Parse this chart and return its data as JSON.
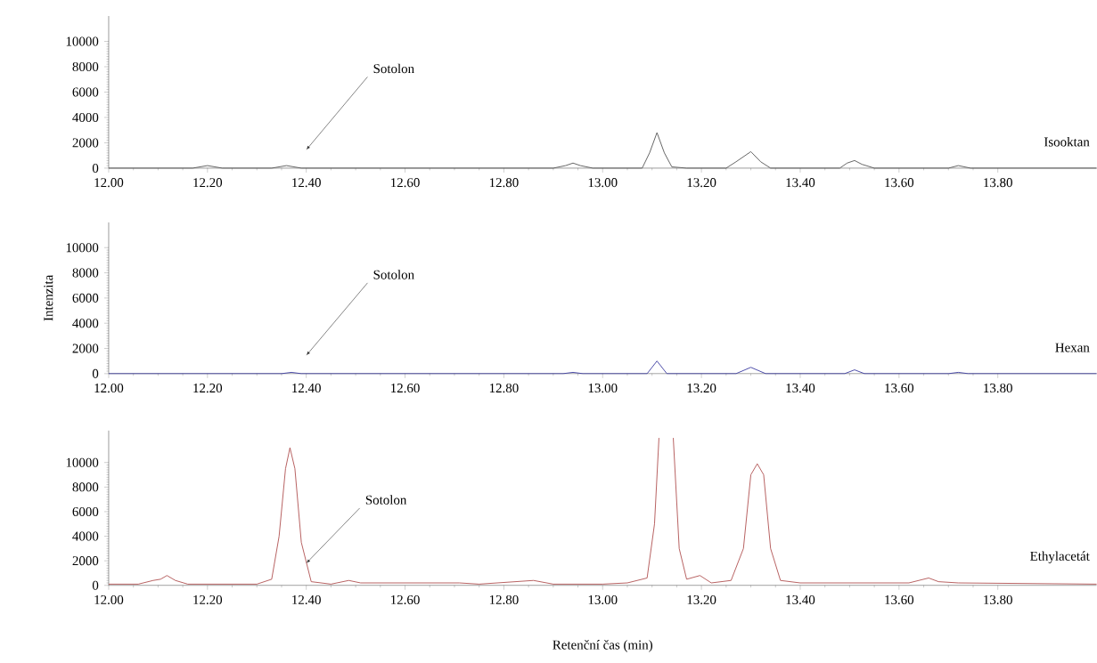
{
  "chart_data": [
    {
      "type": "line",
      "xlim": [
        12,
        14
      ],
      "ylim": [
        0,
        12000
      ],
      "xticks": [
        {
          "value": 12,
          "label": "12.00"
        },
        {
          "value": 12.2,
          "label": "12.20"
        },
        {
          "value": 12.4,
          "label": "12.40"
        },
        {
          "value": 12.6,
          "label": "12.60"
        },
        {
          "value": 12.8,
          "label": "12.80"
        },
        {
          "value": 13,
          "label": "13.00"
        },
        {
          "value": 13.2,
          "label": "13.20"
        },
        {
          "value": 13.4,
          "label": "13.40"
        },
        {
          "value": 13.6,
          "label": "13.60"
        },
        {
          "value": 13.8,
          "label": "13.80"
        }
      ],
      "yticks": [
        0,
        2000,
        4000,
        6000,
        8000,
        10000
      ],
      "annotations": [
        "Sotolon"
      ],
      "series": [
        {
          "name": "Isooktan",
          "color": "#555555",
          "x": [
            12.0,
            12.1,
            12.17,
            12.2,
            12.23,
            12.33,
            12.36,
            12.39,
            12.6,
            12.7,
            12.9,
            12.925,
            12.94,
            12.955,
            12.98,
            13.08,
            13.095,
            13.11,
            13.125,
            13.14,
            13.17,
            13.25,
            13.27,
            13.3,
            13.32,
            13.34,
            13.48,
            13.495,
            13.51,
            13.525,
            13.55,
            13.7,
            13.72,
            13.745,
            14.0
          ],
          "values": [
            0,
            0,
            0,
            200,
            0,
            0,
            200,
            0,
            0,
            0,
            0,
            200,
            400,
            200,
            0,
            0,
            1200,
            2800,
            1200,
            100,
            0,
            0,
            500,
            1300,
            500,
            0,
            0,
            400,
            600,
            300,
            0,
            0,
            200,
            0,
            0
          ]
        }
      ]
    },
    {
      "type": "line",
      "xlim": [
        12,
        14
      ],
      "ylim": [
        0,
        12000
      ],
      "ylabel": "Intenzita",
      "xticks": [
        {
          "value": 12,
          "label": "12.00"
        },
        {
          "value": 12.2,
          "label": "12.20"
        },
        {
          "value": 12.4,
          "label": "12.40"
        },
        {
          "value": 12.6,
          "label": "12.60"
        },
        {
          "value": 12.8,
          "label": "12.80"
        },
        {
          "value": 13,
          "label": "13.00"
        },
        {
          "value": 13.2,
          "label": "13.20"
        },
        {
          "value": 13.4,
          "label": "13.40"
        },
        {
          "value": 13.6,
          "label": "13.60"
        },
        {
          "value": 13.8,
          "label": "13.80"
        }
      ],
      "yticks": [
        0,
        2000,
        4000,
        6000,
        8000,
        10000
      ],
      "annotations": [
        "Sotolon"
      ],
      "series": [
        {
          "name": "Hexan",
          "color": "#3a3aa0",
          "x": [
            12.0,
            12.35,
            12.37,
            12.39,
            12.92,
            12.94,
            12.96,
            13.09,
            13.11,
            13.13,
            13.27,
            13.3,
            13.33,
            13.49,
            13.51,
            13.53,
            13.7,
            13.72,
            13.74,
            14.0
          ],
          "values": [
            0,
            0,
            100,
            0,
            0,
            100,
            0,
            0,
            1000,
            0,
            0,
            500,
            0,
            0,
            300,
            0,
            0,
            100,
            0,
            0
          ]
        }
      ]
    },
    {
      "type": "line",
      "xlim": [
        12,
        14
      ],
      "ylim": [
        0,
        12600
      ],
      "xlabel": "Retenční čas (min)",
      "xticks": [
        {
          "value": 12,
          "label": "12.00"
        },
        {
          "value": 12.2,
          "label": "12.20"
        },
        {
          "value": 12.4,
          "label": "12.40"
        },
        {
          "value": 12.6,
          "label": "12.60"
        },
        {
          "value": 12.8,
          "label": "12.80"
        },
        {
          "value": 13,
          "label": "13.00"
        },
        {
          "value": 13.2,
          "label": "13.20"
        },
        {
          "value": 13.4,
          "label": "13.40"
        },
        {
          "value": 13.6,
          "label": "13.60"
        },
        {
          "value": 13.8,
          "label": "13.80"
        }
      ],
      "yticks": [
        0,
        2000,
        4000,
        6000,
        8000,
        10000
      ],
      "annotations": [
        {
          "text": "Sotolon",
          "x": 12.4,
          "y": 1800
        }
      ],
      "series": [
        {
          "name": "Ethylacetát",
          "color": "#b05050",
          "x": [
            12.0,
            12.06,
            12.09,
            12.105,
            12.118,
            12.135,
            12.16,
            12.3,
            12.33,
            12.345,
            12.358,
            12.367,
            12.377,
            12.39,
            12.41,
            12.45,
            12.486,
            12.51,
            12.71,
            12.75,
            12.86,
            12.9,
            13.0,
            13.05,
            13.09,
            13.105,
            13.114,
            13.129,
            13.143,
            13.155,
            13.17,
            13.197,
            13.22,
            13.26,
            13.285,
            13.3,
            13.313,
            13.326,
            13.34,
            13.36,
            13.4,
            13.62,
            13.64,
            13.66,
            13.68,
            13.72,
            14.0
          ],
          "values": [
            100,
            100,
            400,
            500,
            800,
            400,
            100,
            100,
            500,
            4000,
            9500,
            11200,
            9500,
            3500,
            300,
            100,
            400,
            200,
            200,
            100,
            400,
            100,
            100,
            200,
            600,
            5000,
            12000,
            null,
            12000,
            3000,
            500,
            800,
            200,
            400,
            3000,
            9000,
            9900,
            9000,
            3000,
            400,
            200,
            200,
            400,
            600,
            300,
            200,
            100
          ]
        }
      ]
    }
  ]
}
